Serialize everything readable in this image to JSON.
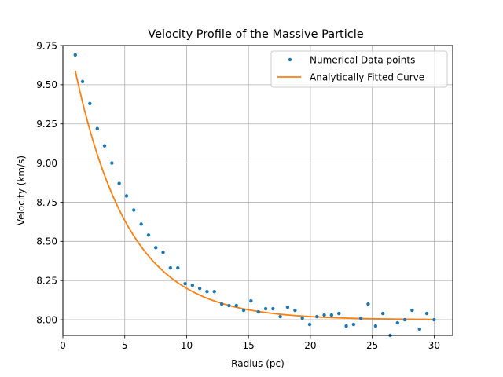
{
  "chart_data": {
    "type": "scatter",
    "title": "Velocity Profile of the Massive Particle",
    "xlabel": "Radius (pc)",
    "ylabel": "Velocity (km/s)",
    "xlim": [
      0,
      31.5
    ],
    "ylim": [
      7.9,
      9.75
    ],
    "xticks": [
      0,
      5,
      10,
      15,
      20,
      25,
      30
    ],
    "xtick_labels": [
      "0",
      "5",
      "10",
      "15",
      "20",
      "25",
      "30"
    ],
    "yticks": [
      8.0,
      8.25,
      8.5,
      8.75,
      9.0,
      9.25,
      9.5,
      9.75
    ],
    "ytick_labels": [
      "8.00",
      "8.25",
      "8.50",
      "8.75",
      "9.00",
      "9.25",
      "9.50",
      "9.75"
    ],
    "grid": true,
    "legend_position": "top-right",
    "series": [
      {
        "name": "Numerical Data points",
        "kind": "scatter",
        "color": "#1f77b4",
        "x": [
          1.0,
          1.59,
          2.18,
          2.78,
          3.37,
          3.96,
          4.55,
          5.14,
          5.73,
          6.33,
          6.92,
          7.51,
          8.1,
          8.69,
          9.29,
          9.88,
          10.47,
          11.06,
          11.65,
          12.24,
          12.84,
          13.43,
          14.02,
          14.61,
          15.2,
          15.8,
          16.39,
          16.98,
          17.57,
          18.16,
          18.76,
          19.35,
          19.94,
          20.53,
          21.12,
          21.71,
          22.31,
          22.9,
          23.49,
          24.08,
          24.67,
          25.27,
          25.86,
          26.45,
          27.04,
          27.63,
          28.22,
          28.82,
          29.41,
          30.0
        ],
        "y": [
          9.69,
          9.52,
          9.38,
          9.22,
          9.11,
          9.0,
          8.87,
          8.79,
          8.7,
          8.61,
          8.54,
          8.46,
          8.43,
          8.33,
          8.33,
          8.23,
          8.22,
          8.2,
          8.18,
          8.18,
          8.1,
          8.09,
          8.09,
          8.06,
          8.12,
          8.05,
          8.07,
          8.07,
          8.02,
          8.08,
          8.06,
          8.01,
          7.97,
          8.02,
          8.03,
          8.03,
          8.04,
          7.96,
          7.97,
          8.01,
          8.1,
          7.96,
          8.04,
          7.9,
          7.98,
          8.0,
          8.06,
          7.94,
          8.04,
          8.0
        ]
      },
      {
        "name": "Analytically Fitted Curve",
        "kind": "line",
        "color": "#ff7f0e",
        "model": {
          "a": 2.0,
          "b": 0.23,
          "c": 8.0
        }
      }
    ]
  }
}
